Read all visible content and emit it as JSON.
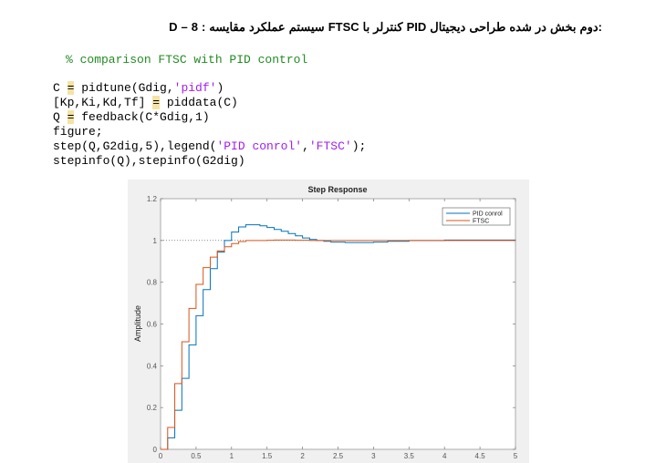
{
  "document": {
    "title": "D – 8 : مقایسه عملکرد سیستم FTSC با کنترلر PID دیجیتال طراحی شده در بخش دوم:",
    "comment": "% comparison FTSC with PID control",
    "code_lines": [
      [
        {
          "t": "C "
        },
        {
          "t": "=",
          "c": "eq"
        },
        {
          "t": " pidtune(Gdig,"
        },
        {
          "t": "'pidf'",
          "c": "str"
        },
        {
          "t": ")"
        }
      ],
      [
        {
          "t": "[Kp,Ki,Kd,Tf] "
        },
        {
          "t": "=",
          "c": "eq"
        },
        {
          "t": " piddata(C)"
        }
      ],
      [
        {
          "t": "Q "
        },
        {
          "t": "=",
          "c": "eq"
        },
        {
          "t": " feedback(C*Gdig,1)"
        }
      ],
      [
        {
          "t": "figure;"
        }
      ],
      [
        {
          "t": "step(Q,G2dig,5),legend("
        },
        {
          "t": "'PID conrol'",
          "c": "str"
        },
        {
          "t": ","
        },
        {
          "t": "'FTSC'",
          "c": "str"
        },
        {
          "t": ");"
        }
      ],
      [
        {
          "t": "stepinfo(Q),stepinfo(G2dig)"
        }
      ]
    ]
  },
  "chart_data": {
    "type": "line",
    "style": "stairs",
    "title": "Step Response",
    "xlabel": "",
    "ylabel": "Amplitude",
    "xlim": [
      0,
      5
    ],
    "ylim": [
      0,
      1.2
    ],
    "xticks": [
      "0",
      "0.5",
      "1",
      "1.5",
      "2",
      "2.5",
      "3",
      "3.5",
      "4",
      "4.5",
      "5"
    ],
    "yticks": [
      "0",
      "0.2",
      "0.4",
      "0.6",
      "0.8",
      "1",
      "1.2"
    ],
    "reference_line": 1,
    "legend_position": "top-right",
    "x": [
      0,
      0.1,
      0.2,
      0.3,
      0.4,
      0.5,
      0.6,
      0.7,
      0.8,
      0.9,
      1.0,
      1.1,
      1.2,
      1.3,
      1.4,
      1.5,
      1.6,
      1.7,
      1.8,
      1.9,
      2.0,
      2.1,
      2.2,
      2.3,
      2.4,
      2.6,
      2.8,
      3.0,
      3.2,
      3.5,
      4.0,
      5.0
    ],
    "series": [
      {
        "name": "PID conrol",
        "color": "#0072bd",
        "values": [
          0,
          0.055,
          0.187,
          0.34,
          0.5,
          0.64,
          0.765,
          0.865,
          0.945,
          1.0,
          1.04,
          1.065,
          1.075,
          1.075,
          1.07,
          1.062,
          1.053,
          1.044,
          1.033,
          1.022,
          1.012,
          1.005,
          1.0,
          0.996,
          0.992,
          0.99,
          0.99,
          0.992,
          0.996,
          1.0,
          1.002,
          1.003
        ]
      },
      {
        "name": "FTSC",
        "color": "#d95319",
        "values": [
          0,
          0.105,
          0.315,
          0.515,
          0.675,
          0.79,
          0.87,
          0.92,
          0.95,
          0.97,
          0.985,
          0.995,
          1.0,
          1.0,
          1.0,
          1.001,
          1.002,
          1.002,
          1.002,
          1.001,
          1.001,
          1.0,
          1.0,
          1.0,
          1.0,
          1.0,
          1.0,
          1.0,
          1.0,
          1.0,
          1.0,
          1.0
        ]
      }
    ]
  }
}
